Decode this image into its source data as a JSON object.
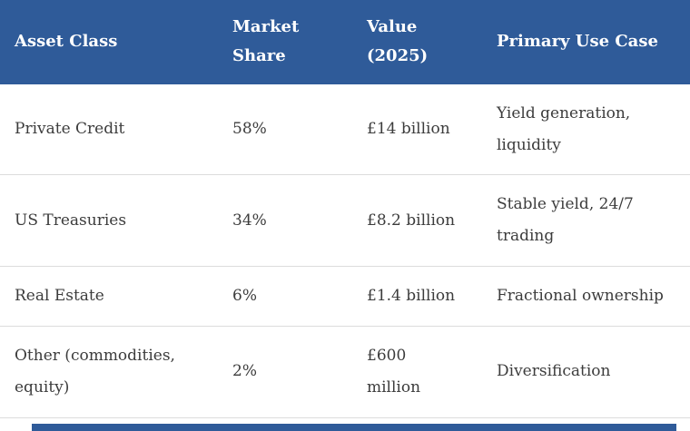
{
  "table": {
    "columns": [
      {
        "label": "Asset Class"
      },
      {
        "label": "Market\nShare"
      },
      {
        "label": "Value\n(2025)"
      },
      {
        "label": "Primary Use Case"
      }
    ],
    "rows": [
      {
        "asset_class": "Private Credit",
        "market_share": "58%",
        "value": "£14 billion",
        "use_case": "Yield generation,\nliquidity"
      },
      {
        "asset_class": "US Treasuries",
        "market_share": "34%",
        "value": "£8.2 billion",
        "use_case": "Stable yield, 24/7\ntrading"
      },
      {
        "asset_class": "Real Estate",
        "market_share": "6%",
        "value": "£1.4 billion",
        "use_case": "Fractional ownership"
      },
      {
        "asset_class": "Other (commodities,\nequity)",
        "market_share": "2%",
        "value": "£600\nmillion",
        "use_case": "Diversification"
      }
    ]
  },
  "colors": {
    "header_bg": "#2f5b99",
    "header_text": "#ffffff",
    "body_text": "#3c3c3c",
    "row_border": "#dcdcdc",
    "next_section_bar": "#2f5b99"
  }
}
